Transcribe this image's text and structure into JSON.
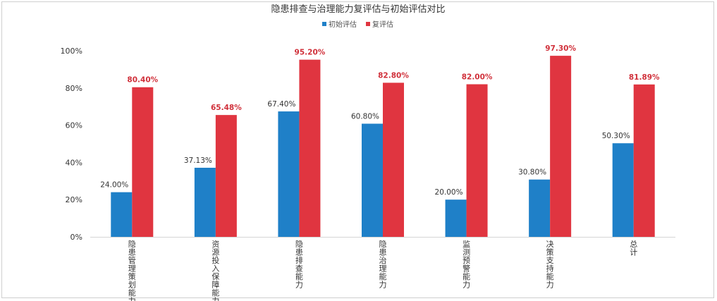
{
  "chart_data": {
    "type": "bar",
    "title": "隐患排查与治理能力复评估与初始评估对比",
    "xlabel": "",
    "ylabel": "",
    "categories": [
      "隐患管理策划能力",
      "资源投入保障能力",
      "隐患排查能力",
      "隐患治理能力",
      "监测预警能力",
      "决策支持能力",
      "总计"
    ],
    "series": [
      {
        "name": "初始评估",
        "color": "#1f80c8",
        "label_color": "#333333",
        "values": [
          24.0,
          37.13,
          67.4,
          60.8,
          20.0,
          30.8,
          50.3
        ],
        "labels": [
          "24.00%",
          "37.13%",
          "67.40%",
          "60.80%",
          "20.00%",
          "30.80%",
          "50.30%"
        ]
      },
      {
        "name": "复评估",
        "color": "#e03540",
        "label_color": "#d0303a",
        "values": [
          80.4,
          65.48,
          95.2,
          82.8,
          82.0,
          97.3,
          81.89
        ],
        "labels": [
          "80.40%",
          "65.48%",
          "95.20%",
          "82.80%",
          "82.00%",
          "97.30%",
          "81.89%"
        ]
      }
    ],
    "ylim": [
      0,
      100
    ],
    "yticks": [
      "0%",
      "20%",
      "40%",
      "60%",
      "80%",
      "100%"
    ],
    "grid": false,
    "legend_position": "top-center"
  }
}
